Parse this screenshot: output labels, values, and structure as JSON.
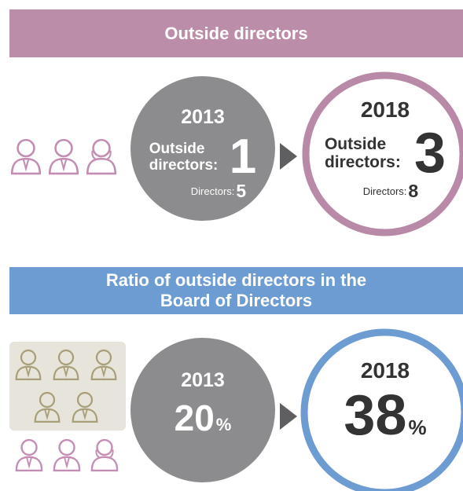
{
  "sections": [
    {
      "title": "Outside directors",
      "before": {
        "year": "2013",
        "label": "Outside directors:",
        "value": 1,
        "sub_label": "Directors:",
        "sub_value": 5
      },
      "after": {
        "year": "2018",
        "label": "Outside directors:",
        "value": 3,
        "sub_label": "Directors:",
        "sub_value": 8
      }
    },
    {
      "title": "Ratio of outside directors in the Board of Directors",
      "before": {
        "year": "2013",
        "value": 20,
        "unit": "%"
      },
      "after": {
        "year": "2018",
        "value": 38,
        "unit": "%"
      }
    }
  ]
}
